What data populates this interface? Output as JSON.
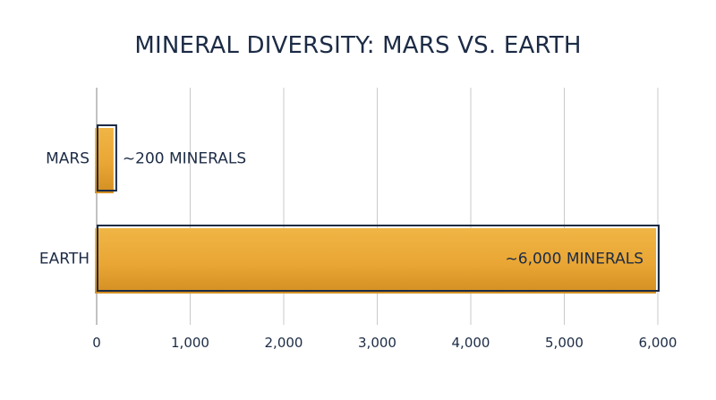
{
  "chart_data": {
    "type": "bar",
    "orientation": "horizontal",
    "title": "MINERAL DIVERSITY: MARS VS. EARTH",
    "categories": [
      "MARS",
      "EARTH"
    ],
    "values": [
      200,
      6000
    ],
    "data_labels": [
      "~200 MINERALS",
      "~6,000 MINERALS"
    ],
    "xlim": [
      0,
      6000
    ],
    "xticks": [
      0,
      1000,
      2000,
      3000,
      4000,
      5000,
      6000
    ],
    "xtick_labels": [
      "0",
      "1,000",
      "2,000",
      "3,000",
      "4,000",
      "5,000",
      "6,000"
    ],
    "grid": true,
    "bar_color": "#e9a634",
    "bar_outline_color": "#1c2b45",
    "text_color": "#1c2b45",
    "grid_color": "#c9c9c9"
  }
}
